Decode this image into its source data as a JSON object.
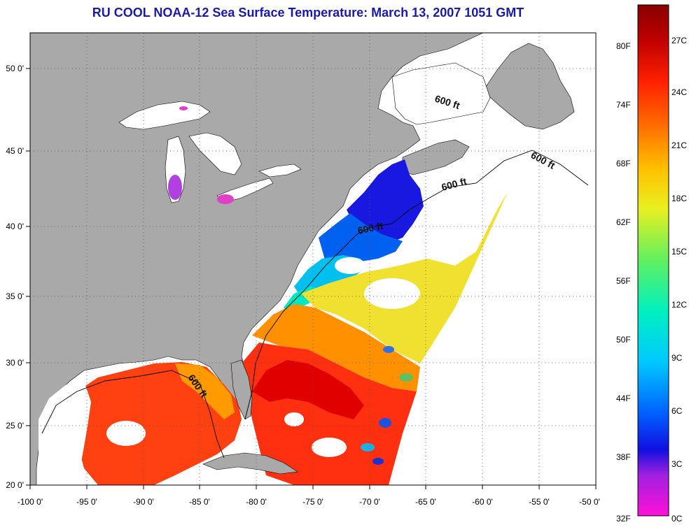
{
  "title": "RU COOL  NOAA-12  Sea Surface Temperature:  March 13, 2007 1051 GMT",
  "map": {
    "lon_ticks": [
      "-100 0'",
      "-95 0'",
      "-90 0'",
      "-85 0'",
      "-80 0'",
      "-75 0'",
      "-70 0'",
      "-65 0'",
      "-60 0'",
      "-55 0'",
      "-50 0'"
    ],
    "lat_ticks": [
      "50 0'",
      "45 0'",
      "40 0'",
      "35 0'",
      "30 0'",
      "25 0'",
      "20 0'"
    ],
    "lon_range": [
      -100,
      -50
    ],
    "lat_range": [
      20,
      52.5
    ],
    "contour_labels": [
      "600 ft",
      "600 ft",
      "600 ft",
      "600 ft",
      "600 ft"
    ],
    "colors": {
      "land": "#a9a9a9",
      "cloud_or_nodata": "#ffffff",
      "outline": "#000000"
    }
  },
  "colorbar": {
    "fahrenheit_labels": [
      "80F",
      "74F",
      "68F",
      "62F",
      "56F",
      "50F",
      "44F",
      "38F",
      "32F"
    ],
    "celsius_labels": [
      "27C",
      "24C",
      "21C",
      "18C",
      "15C",
      "12C",
      "9C",
      "6C",
      "3C",
      "0C"
    ],
    "stops": [
      "#ff10d8",
      "#a020e0",
      "#1010e0",
      "#0060ff",
      "#00c8ff",
      "#00f0c0",
      "#60f060",
      "#e8f020",
      "#ffc000",
      "#ff7000",
      "#ff2000",
      "#c00000",
      "#880000"
    ]
  }
}
